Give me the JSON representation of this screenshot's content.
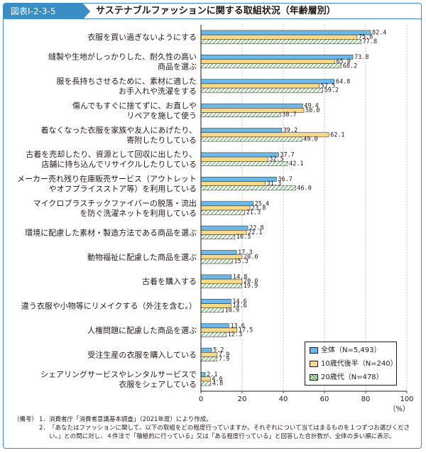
{
  "header": {
    "badge": "図表Ⅰ-2-3-5",
    "title": "サステナブルファッションに関する取組状況（年齢層別）"
  },
  "colors": {
    "series0": "#6cb8e6",
    "series1": "#f8d98a",
    "series2_stripe": "#4aa54a",
    "series2_bg": "#ffffff",
    "frame": "#3a8ec4",
    "grid": "#a0a0a0"
  },
  "chart_data": {
    "type": "bar",
    "orientation": "horizontal",
    "categories": [
      [
        "衣服を買い過ぎないようにする"
      ],
      [
        "縫製や生地がしっかりした、耐久性の高い",
        "商品を選ぶ"
      ],
      [
        "服を長持ちさせるために、素材に適した",
        "お手入れや洗濯をする"
      ],
      [
        "傷んでもすぐに捨てずに、お直しや",
        "リペアを施して使う"
      ],
      [
        "着なくなった衣服を家族や友人にあげたり、",
        "寄附したりしている"
      ],
      [
        "古着を売却したり、資源として回収に出したり、",
        "店舗に持ち込んでリサイクルしたりしている"
      ],
      [
        "メーカー売れ残り在庫販売サービス（アウトレット",
        "やオフプライスストア等）を利用している"
      ],
      [
        "マイクロプラスチックファイバーの脱落・流出",
        "を防ぐ洗濯ネットを利用している"
      ],
      [
        "環境に配慮した素材・製造方法である商品を選ぶ"
      ],
      [
        "動物福祉に配慮した商品を選ぶ"
      ],
      [
        "古着を購入する"
      ],
      [
        "違う衣服や小物等にリメイクする（外注を含む。）"
      ],
      [
        "人権問題に配慮した商品を選ぶ"
      ],
      [
        "受注生産の衣服を購入している"
      ],
      [
        "シェアリングサービスやレンタルサービスで",
        "衣服をシェアしている"
      ]
    ],
    "series": [
      {
        "name": "全体（N=5,493）",
        "values": [
          82.4,
          73.8,
          64.8,
          49.4,
          39.2,
          37.7,
          36.7,
          25.4,
          22.8,
          17.3,
          14.8,
          14.6,
          13.6,
          5.2,
          2.1
        ]
      },
      {
        "name": "10歳代後半（N=240）",
        "values": [
          75.8,
          65.0,
          57.5,
          50.0,
          62.1,
          32.5,
          31.3,
          23.8,
          22.1,
          20.0,
          20.0,
          14.6,
          17.5,
          7.9,
          4.6
        ]
      },
      {
        "name": "20歳代（N=478）",
        "values": [
          77.8,
          68.2,
          59.2,
          38.7,
          49.0,
          42.1,
          46.0,
          21.3,
          16.5,
          15.3,
          19.9,
          10.9,
          12.3,
          7.9,
          4.8
        ]
      }
    ],
    "xlim": [
      0,
      100
    ],
    "xticks": [
      0,
      20,
      40,
      60,
      80,
      100
    ],
    "xlabel": "（%）",
    "grid": true,
    "legend": "bottom-right"
  },
  "notes": {
    "head": "（備考）",
    "items": [
      {
        "num": "1．",
        "text": "消費者庁「消費者意識基本調査」（2021年度）により作成。"
      },
      {
        "num": "2．",
        "text": "「あなたはファッションに関して、以下の取組をどの程度行っていますか。それぞれについて当てはまるものを１つずつお選びください。」との問に対し、４件法で「積極的に行っている」又は「ある程度行っている」と回答した合計数が、全体の多い順に表示。"
      }
    ]
  }
}
